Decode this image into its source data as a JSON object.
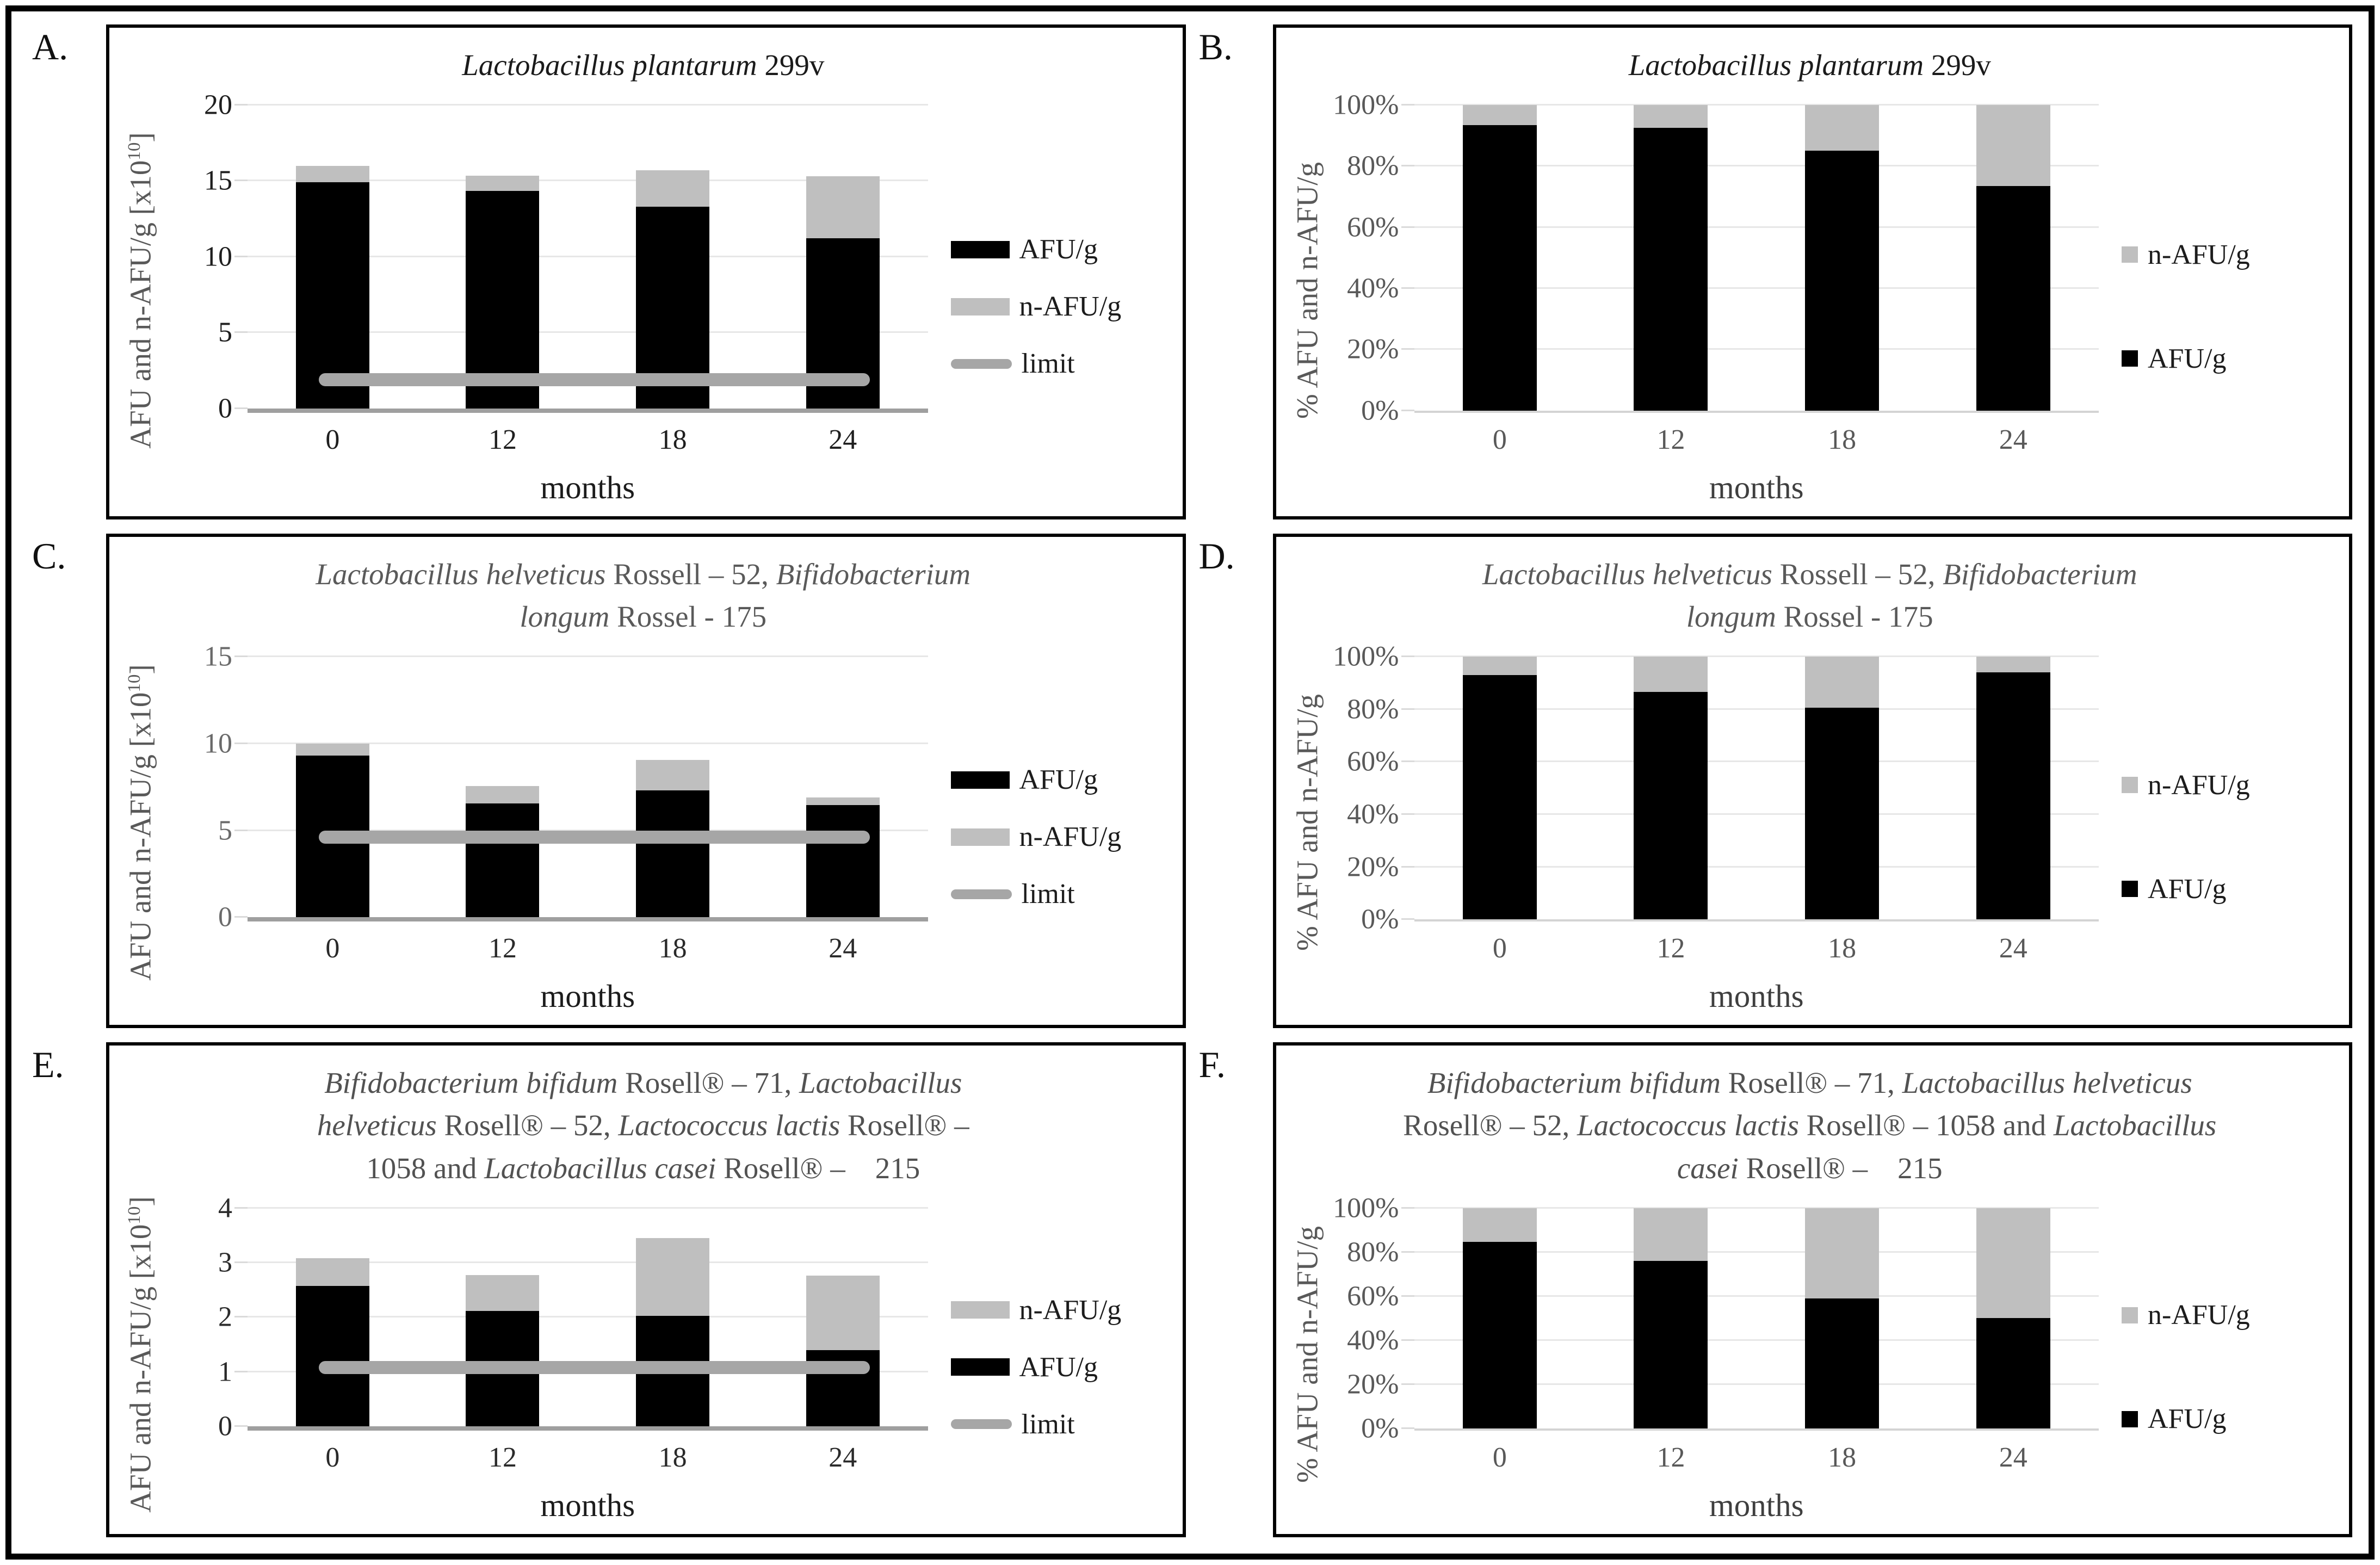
{
  "figure": {
    "description": "Six-panel stacked bar figure of probiotic viability (AFU/g and n-AFU/g) over storage months",
    "background": "#ffffff",
    "border_color": "#000000"
  },
  "colors": {
    "afu": "#000000",
    "n_afu": "#bfbfbf",
    "limit": "#a6a6a6",
    "gridline": "#e7e7e7"
  },
  "chart_data": [
    {
      "panel_label": "A.",
      "type": "bar",
      "stacked": true,
      "title_segments": [
        {
          "t": "Lactobacillus plantarum",
          "i": true
        },
        {
          "t": " 299v",
          "i": false
        }
      ],
      "title_color": "#1b1b1b",
      "categories": [
        "0",
        "12",
        "18",
        "24"
      ],
      "series": [
        {
          "name": "AFU/g",
          "color": "#000000",
          "values": [
            14.9,
            14.35,
            13.3,
            11.2
          ]
        },
        {
          "name": "n-AFU/g",
          "color": "#bfbfbf",
          "values": [
            1.1,
            1.0,
            2.4,
            4.1
          ]
        }
      ],
      "limit": 1.9,
      "limit_color": "#a6a6a6",
      "ylim": [
        0,
        20
      ],
      "yticks": [
        0,
        5,
        10,
        15,
        20
      ],
      "percent": false,
      "ylabel": {
        "pre": "AFU and n-AFU/g [x10",
        "sup": "10",
        "post": "]"
      },
      "xlabel": "months",
      "legend": [
        "AFU/g",
        "n-AFU/g",
        "limit"
      ],
      "legend_style": "wide",
      "ytick_color": "#1f1f1f",
      "xtick_color": "#1f1f1f"
    },
    {
      "panel_label": "B.",
      "type": "bar",
      "stacked": true,
      "title_segments": [
        {
          "t": "Lactobacillus plantarum",
          "i": true
        },
        {
          "t": " 299v",
          "i": false
        }
      ],
      "title_color": "#1b1b1b",
      "categories": [
        "0",
        "12",
        "18",
        "24"
      ],
      "series": [
        {
          "name": "AFU/g",
          "color": "#000000",
          "values": [
            93.5,
            92.5,
            85,
            73.5
          ]
        },
        {
          "name": "n-AFU/g",
          "color": "#bfbfbf",
          "values": [
            6.5,
            7.5,
            15,
            26.5
          ]
        }
      ],
      "limit": null,
      "ylim": [
        0,
        100
      ],
      "yticks": [
        0,
        20,
        40,
        60,
        80,
        100
      ],
      "percent": true,
      "ylabel": {
        "pre": "% AFU and n-AFU/g",
        "sup": "",
        "post": ""
      },
      "xlabel": "months",
      "legend": [
        "n-AFU/g",
        "AFU/g"
      ],
      "legend_style": "square",
      "ytick_color": "#595959",
      "xtick_color": "#595959"
    },
    {
      "panel_label": "C.",
      "type": "bar",
      "stacked": true,
      "title_segments": [
        {
          "t": "Lactobacillus helveticus",
          "i": true
        },
        {
          "t": " Rossell – 52, ",
          "i": false
        },
        {
          "t": "Bifidobacterium longum",
          "i": true
        },
        {
          "t": " Rossel - 175",
          "i": false
        }
      ],
      "title_color": "#5a5a5a",
      "categories": [
        "0",
        "12",
        "18",
        "24"
      ],
      "series": [
        {
          "name": "AFU/g",
          "color": "#000000",
          "values": [
            9.3,
            6.55,
            7.3,
            6.45
          ]
        },
        {
          "name": "n-AFU/g",
          "color": "#bfbfbf",
          "values": [
            0.7,
            1.0,
            1.75,
            0.45
          ]
        }
      ],
      "limit": 4.6,
      "limit_color": "#a6a6a6",
      "ylim": [
        0,
        15
      ],
      "yticks": [
        0,
        5,
        10,
        15
      ],
      "percent": false,
      "ylabel": {
        "pre": "AFU and n-AFU/g [x10",
        "sup": "10",
        "post": "]"
      },
      "xlabel": "months",
      "legend": [
        "AFU/g",
        "n-AFU/g",
        "limit"
      ],
      "legend_style": "wide",
      "ytick_color": "#6a6a6a",
      "xtick_color": "#2a2a2a"
    },
    {
      "panel_label": "D.",
      "type": "bar",
      "stacked": true,
      "title_segments": [
        {
          "t": "Lactobacillus helveticus",
          "i": true
        },
        {
          "t": " Rossell – 52, ",
          "i": false
        },
        {
          "t": "Bifidobacterium longum",
          "i": true
        },
        {
          "t": " Rossel - 175",
          "i": false
        }
      ],
      "title_color": "#5a5a5a",
      "categories": [
        "0",
        "12",
        "18",
        "24"
      ],
      "series": [
        {
          "name": "AFU/g",
          "color": "#000000",
          "values": [
            93,
            86.5,
            80.5,
            94
          ]
        },
        {
          "name": "n-AFU/g",
          "color": "#bfbfbf",
          "values": [
            7,
            13.5,
            19.5,
            6
          ]
        }
      ],
      "limit": null,
      "ylim": [
        0,
        100
      ],
      "yticks": [
        0,
        20,
        40,
        60,
        80,
        100
      ],
      "percent": true,
      "ylabel": {
        "pre": "% AFU and n-AFU/g",
        "sup": "",
        "post": ""
      },
      "xlabel": "months",
      "legend": [
        "n-AFU/g",
        "AFU/g"
      ],
      "legend_style": "square",
      "ytick_color": "#595959",
      "xtick_color": "#595959"
    },
    {
      "panel_label": "E.",
      "type": "bar",
      "stacked": true,
      "title_segments": [
        {
          "t": "Bifidobacterium bifidum",
          "i": true
        },
        {
          "t": " Rosell® – 71, ",
          "i": false
        },
        {
          "t": "Lactobacillus helveticus",
          "i": true
        },
        {
          "t": " Rosell® – 52, ",
          "i": false
        },
        {
          "t": "Lactococcus lactis",
          "i": true
        },
        {
          "t": " Rosell® – 1058 and ",
          "i": false
        },
        {
          "t": "Lactobacillus casei",
          "i": true
        },
        {
          "t": " Rosell® –    215",
          "i": false
        }
      ],
      "title_color": "#525252",
      "categories": [
        "0",
        "12",
        "18",
        "24"
      ],
      "series": [
        {
          "name": "AFU/g",
          "color": "#000000",
          "values": [
            2.57,
            2.11,
            2.02,
            1.4
          ]
        },
        {
          "name": "n-AFU/g",
          "color": "#bfbfbf",
          "values": [
            0.51,
            0.66,
            1.43,
            1.36
          ]
        }
      ],
      "limit": 1.08,
      "limit_color": "#a6a6a6",
      "ylim": [
        0,
        4
      ],
      "yticks": [
        0,
        1,
        2,
        3,
        4
      ],
      "percent": false,
      "ylabel": {
        "pre": "AFU and n-AFU/g [x10",
        "sup": "10",
        "post": "]"
      },
      "xlabel": "months",
      "legend": [
        "n-AFU/g",
        "AFU/g",
        "limit"
      ],
      "legend_style": "wide",
      "ytick_color": "#2b2b2b",
      "xtick_color": "#2a2a2a"
    },
    {
      "panel_label": "F.",
      "type": "bar",
      "stacked": true,
      "title_segments": [
        {
          "t": "Bifidobacterium bifidum",
          "i": true
        },
        {
          "t": " Rosell® – 71, ",
          "i": false
        },
        {
          "t": "Lactobacillus helveticus",
          "i": true
        },
        {
          "t": " Rosell® – 52, ",
          "i": false
        },
        {
          "t": "Lactococcus lactis",
          "i": true
        },
        {
          "t": " Rosell® – 1058 and ",
          "i": false
        },
        {
          "t": "Lactobacillus casei",
          "i": true
        },
        {
          "t": " Rosell® –    215",
          "i": false
        }
      ],
      "title_color": "#525252",
      "categories": [
        "0",
        "12",
        "18",
        "24"
      ],
      "series": [
        {
          "name": "AFU/g",
          "color": "#000000",
          "values": [
            84.5,
            76,
            59,
            50
          ]
        },
        {
          "name": "n-AFU/g",
          "color": "#bfbfbf",
          "values": [
            15.5,
            24,
            41,
            50
          ]
        }
      ],
      "limit": null,
      "ylim": [
        0,
        100
      ],
      "yticks": [
        0,
        20,
        40,
        60,
        80,
        100
      ],
      "percent": true,
      "ylabel": {
        "pre": "% AFU and n-AFU/g",
        "sup": "",
        "post": ""
      },
      "xlabel": "months",
      "legend": [
        "n-AFU/g",
        "AFU/g"
      ],
      "legend_style": "square",
      "ytick_color": "#595959",
      "xtick_color": "#595959"
    }
  ]
}
